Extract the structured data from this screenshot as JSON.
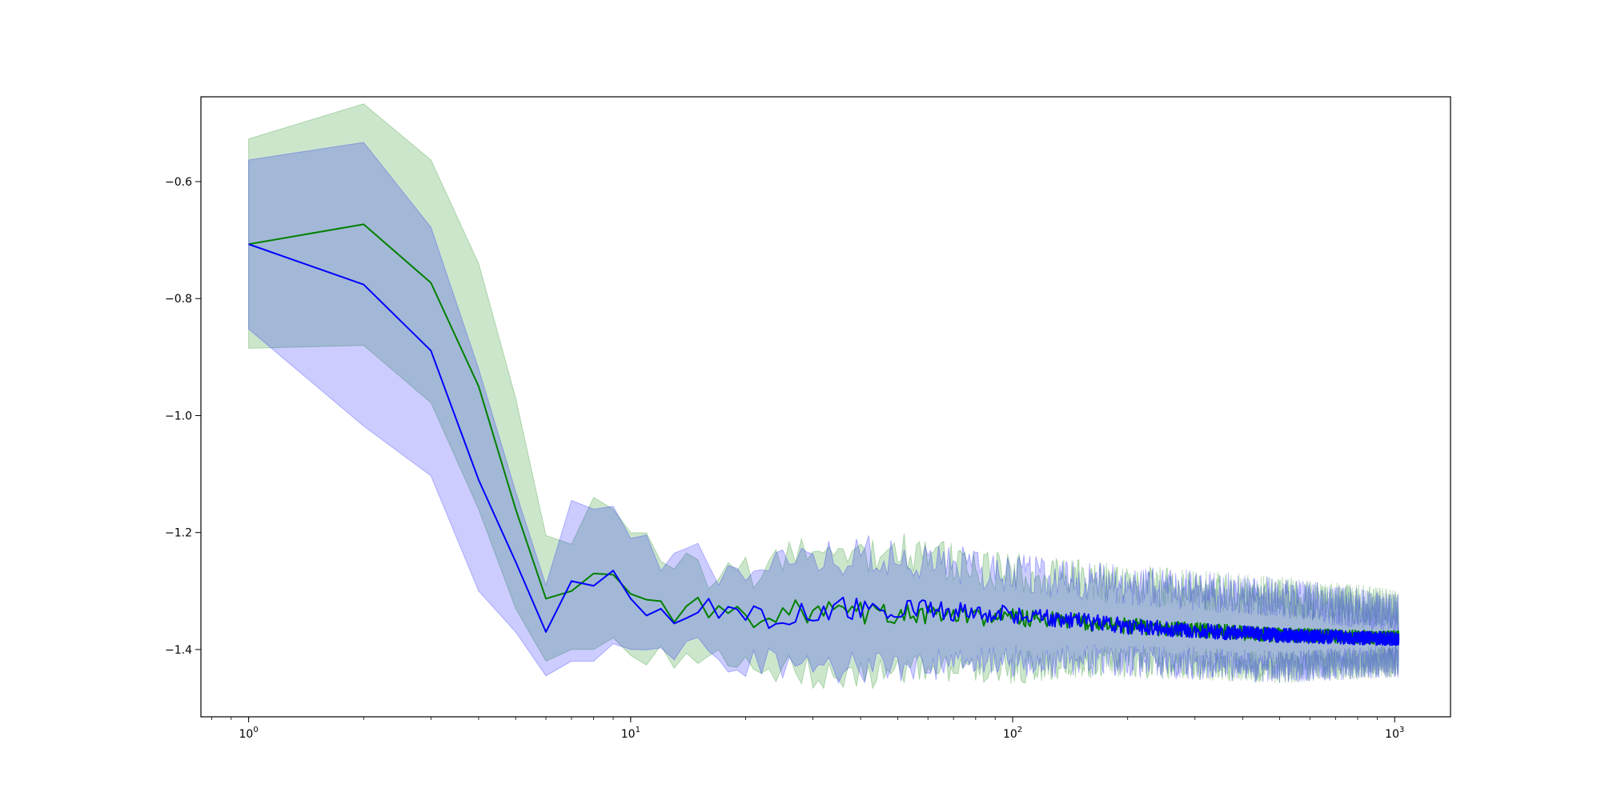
{
  "chart_data": {
    "type": "line",
    "title": "",
    "xlabel": "",
    "ylabel": "",
    "xscale": "log",
    "xlim": [
      0.75,
      1400
    ],
    "ylim": [
      -1.515,
      -0.455
    ],
    "grid": false,
    "legend": "none",
    "x_ticks": [
      {
        "base": "10",
        "exp": "0",
        "value": 1
      },
      {
        "base": "10",
        "exp": "1",
        "value": 10
      },
      {
        "base": "10",
        "exp": "2",
        "value": 100
      },
      {
        "base": "10",
        "exp": "3",
        "value": 1000
      }
    ],
    "y_ticks": [
      {
        "label": "−0.6",
        "value": -0.6
      },
      {
        "label": "−0.8",
        "value": -0.8
      },
      {
        "label": "−1.0",
        "value": -1.0
      },
      {
        "label": "−1.2",
        "value": -1.2
      },
      {
        "label": "−1.4",
        "value": -1.4
      }
    ],
    "series": [
      {
        "color": "#008000",
        "band_color": "#008000",
        "band_opacity": 0.2,
        "key_points": [
          {
            "x": 1,
            "y": -0.707,
            "lo": -0.885,
            "hi": -0.527
          },
          {
            "x": 2,
            "y": -0.673,
            "lo": -0.88,
            "hi": -0.467
          },
          {
            "x": 3,
            "y": -0.773,
            "lo": -0.978,
            "hi": -0.563
          },
          {
            "x": 4,
            "y": -0.95,
            "lo": -1.16,
            "hi": -0.74
          },
          {
            "x": 5,
            "y": -1.16,
            "lo": -1.33,
            "hi": -0.97
          },
          {
            "x": 6,
            "y": -1.313,
            "lo": -1.42,
            "hi": -1.205
          },
          {
            "x": 7,
            "y": -1.3,
            "lo": -1.4,
            "hi": -1.22
          },
          {
            "x": 8,
            "y": -1.27,
            "lo": -1.4,
            "hi": -1.14
          },
          {
            "x": 9,
            "y": -1.272,
            "lo": -1.38,
            "hi": -1.16
          },
          {
            "x": 10,
            "y": -1.305,
            "lo": -1.41,
            "hi": -1.2
          },
          {
            "x": 12,
            "y": -1.325,
            "lo": -1.41,
            "hi": -1.235
          },
          {
            "x": 15,
            "y": -1.333,
            "lo": -1.42,
            "hi": -1.265
          },
          {
            "x": 20,
            "y": -1.34,
            "lo": -1.43,
            "hi": -1.27
          },
          {
            "x": 30,
            "y": -1.335,
            "lo": -1.44,
            "hi": -1.24
          },
          {
            "x": 50,
            "y": -1.34,
            "lo": -1.44,
            "hi": -1.23
          },
          {
            "x": 100,
            "y": -1.345,
            "lo": -1.43,
            "hi": -1.27
          },
          {
            "x": 200,
            "y": -1.36,
            "lo": -1.42,
            "hi": -1.29
          },
          {
            "x": 500,
            "y": -1.375,
            "lo": -1.43,
            "hi": -1.31
          },
          {
            "x": 1024,
            "y": -1.38,
            "lo": -1.42,
            "hi": -1.33
          }
        ]
      },
      {
        "color": "#0000ff",
        "band_color": "#0000ff",
        "band_opacity": 0.2,
        "key_points": [
          {
            "x": 1,
            "y": -0.707,
            "lo": -0.852,
            "hi": -0.563
          },
          {
            "x": 2,
            "y": -0.776,
            "lo": -1.018,
            "hi": -0.533
          },
          {
            "x": 3,
            "y": -0.889,
            "lo": -1.103,
            "hi": -0.678
          },
          {
            "x": 4,
            "y": -1.11,
            "lo": -1.3,
            "hi": -0.92
          },
          {
            "x": 5,
            "y": -1.25,
            "lo": -1.37,
            "hi": -1.13
          },
          {
            "x": 6,
            "y": -1.37,
            "lo": -1.445,
            "hi": -1.29
          },
          {
            "x": 7,
            "y": -1.283,
            "lo": -1.42,
            "hi": -1.145
          },
          {
            "x": 8,
            "y": -1.291,
            "lo": -1.42,
            "hi": -1.16
          },
          {
            "x": 9,
            "y": -1.265,
            "lo": -1.39,
            "hi": -1.155
          },
          {
            "x": 10,
            "y": -1.313,
            "lo": -1.4,
            "hi": -1.21
          },
          {
            "x": 12,
            "y": -1.338,
            "lo": -1.4,
            "hi": -1.26
          },
          {
            "x": 15,
            "y": -1.33,
            "lo": -1.4,
            "hi": -1.245
          },
          {
            "x": 20,
            "y": -1.348,
            "lo": -1.42,
            "hi": -1.275
          },
          {
            "x": 30,
            "y": -1.33,
            "lo": -1.43,
            "hi": -1.24
          },
          {
            "x": 50,
            "y": -1.33,
            "lo": -1.43,
            "hi": -1.24
          },
          {
            "x": 100,
            "y": -1.34,
            "lo": -1.42,
            "hi": -1.27
          },
          {
            "x": 200,
            "y": -1.36,
            "lo": -1.42,
            "hi": -1.29
          },
          {
            "x": 500,
            "y": -1.376,
            "lo": -1.43,
            "hi": -1.31
          },
          {
            "x": 1024,
            "y": -1.382,
            "lo": -1.42,
            "hi": -1.34
          }
        ]
      }
    ]
  }
}
